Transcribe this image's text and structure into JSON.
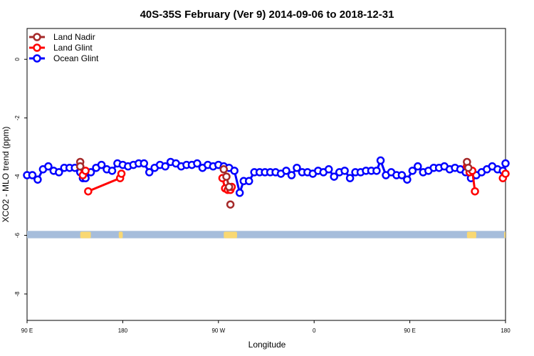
{
  "chart_data": {
    "type": "line",
    "title": "40S-35S February (Ver 9)   2014-09-06 to 2018-12-31",
    "xlabel": "Longitude",
    "ylabel": "XCO2 - MLO trend (ppm)",
    "xlim": [
      90,
      450
    ],
    "ylim": [
      -8.9,
      1.05
    ],
    "x_ticks": [
      {
        "value": 90,
        "label": "90 E"
      },
      {
        "value": 162,
        "label": "180"
      },
      {
        "value": 234,
        "label": "90 W"
      },
      {
        "value": 306,
        "label": "0"
      },
      {
        "value": 378,
        "label": "90 E"
      },
      {
        "value": 450,
        "label": "180"
      }
    ],
    "y_ticks": [
      {
        "value": 0,
        "label": "0"
      },
      {
        "value": -2,
        "label": "-2"
      },
      {
        "value": -4,
        "label": "-4"
      },
      {
        "value": -6,
        "label": "-6"
      },
      {
        "value": -8,
        "label": "-8"
      }
    ],
    "grid": false,
    "legend_position": "top-left",
    "background_band": {
      "y_top": -5.85,
      "y_bottom": -6.1,
      "ocean_color": "#a6bddb",
      "land_color": "#f9d873",
      "land_spans": [
        [
          130,
          138
        ],
        [
          159,
          162
        ],
        [
          238,
          248
        ],
        [
          421,
          428
        ],
        [
          449,
          450
        ]
      ]
    },
    "series": [
      {
        "name": "Land Nadir",
        "color": "#a52a2a",
        "segments": [
          [
            [
              130,
              -3.5
            ],
            [
              130.0,
              -3.65
            ]
          ],
          [
            [
              238,
              -3.75
            ],
            [
              240,
              -4.0
            ],
            [
              242,
              -4.35
            ]
          ],
          [
            [
              421,
              -3.5
            ],
            [
              422,
              -3.7
            ]
          ]
        ],
        "points": [
          [
            130,
            -3.5
          ],
          [
            130.0,
            -3.65
          ],
          [
            238,
            -3.75
          ],
          [
            240,
            -4.0
          ],
          [
            242,
            -4.35
          ],
          [
            243,
            -4.95
          ],
          [
            421,
            -3.5
          ],
          [
            422,
            -3.7
          ]
        ]
      },
      {
        "name": "Land Glint",
        "color": "#ff0000",
        "segments": [
          [
            [
              130,
              -3.65
            ],
            [
              132,
              -3.95
            ],
            [
              134,
              -3.8
            ]
          ],
          [
            [
              136,
              -4.5
            ],
            [
              160,
              -4.05
            ],
            [
              161,
              -3.9
            ]
          ],
          [
            [
              237,
              -4.05
            ],
            [
              239,
              -4.4
            ],
            [
              241,
              -4.45
            ],
            [
              243,
              -4.45
            ],
            [
              244,
              -4.35
            ]
          ],
          [
            [
              421,
              -3.65
            ],
            [
              423,
              -3.85
            ],
            [
              425,
              -3.8
            ],
            [
              427,
              -4.5
            ]
          ],
          [
            [
              448,
              -4.05
            ],
            [
              450,
              -3.9
            ]
          ]
        ],
        "points": [
          [
            130,
            -3.65
          ],
          [
            132,
            -3.95
          ],
          [
            134,
            -3.8
          ],
          [
            136,
            -4.5
          ],
          [
            160,
            -4.05
          ],
          [
            161,
            -3.9
          ],
          [
            237,
            -4.05
          ],
          [
            239,
            -4.4
          ],
          [
            241,
            -4.45
          ],
          [
            243,
            -4.45
          ],
          [
            244,
            -4.35
          ],
          [
            421,
            -3.65
          ],
          [
            423,
            -3.85
          ],
          [
            425,
            -3.8
          ],
          [
            427,
            -4.5
          ],
          [
            448,
            -4.05
          ],
          [
            450,
            -3.9
          ]
        ]
      },
      {
        "name": "Ocean Glint",
        "color": "#0000ff",
        "points": [
          [
            90,
            -3.95
          ],
          [
            94,
            -3.95
          ],
          [
            98,
            -4.1
          ],
          [
            102,
            -3.75
          ],
          [
            106,
            -3.65
          ],
          [
            110,
            -3.8
          ],
          [
            114,
            -3.85
          ],
          [
            118,
            -3.7
          ],
          [
            122,
            -3.7
          ],
          [
            126,
            -3.7
          ],
          [
            130,
            -3.85
          ],
          [
            132,
            -4.05
          ],
          [
            134,
            -4.05
          ],
          [
            138,
            -3.85
          ],
          [
            142,
            -3.7
          ],
          [
            146,
            -3.6
          ],
          [
            150,
            -3.75
          ],
          [
            154,
            -3.8
          ],
          [
            158,
            -3.55
          ],
          [
            162,
            -3.6
          ],
          [
            166,
            -3.65
          ],
          [
            170,
            -3.6
          ],
          [
            174,
            -3.55
          ],
          [
            178,
            -3.55
          ],
          [
            182,
            -3.85
          ],
          [
            186,
            -3.7
          ],
          [
            190,
            -3.6
          ],
          [
            194,
            -3.65
          ],
          [
            198,
            -3.5
          ],
          [
            202,
            -3.55
          ],
          [
            206,
            -3.65
          ],
          [
            210,
            -3.6
          ],
          [
            214,
            -3.6
          ],
          [
            218,
            -3.55
          ],
          [
            222,
            -3.7
          ],
          [
            226,
            -3.6
          ],
          [
            230,
            -3.65
          ],
          [
            234,
            -3.6
          ],
          [
            238,
            -3.65
          ],
          [
            242,
            -3.7
          ],
          [
            246,
            -3.8
          ],
          [
            250,
            -4.55
          ],
          [
            253,
            -4.15
          ],
          [
            257,
            -4.15
          ],
          [
            261,
            -3.85
          ],
          [
            265,
            -3.85
          ],
          [
            269,
            -3.85
          ],
          [
            273,
            -3.85
          ],
          [
            277,
            -3.85
          ],
          [
            281,
            -3.9
          ],
          [
            285,
            -3.8
          ],
          [
            289,
            -3.95
          ],
          [
            293,
            -3.7
          ],
          [
            297,
            -3.85
          ],
          [
            301,
            -3.85
          ],
          [
            305,
            -3.9
          ],
          [
            309,
            -3.8
          ],
          [
            313,
            -3.85
          ],
          [
            317,
            -3.75
          ],
          [
            321,
            -4.0
          ],
          [
            325,
            -3.85
          ],
          [
            329,
            -3.8
          ],
          [
            333,
            -4.05
          ],
          [
            337,
            -3.85
          ],
          [
            341,
            -3.85
          ],
          [
            345,
            -3.8
          ],
          [
            349,
            -3.8
          ],
          [
            353,
            -3.8
          ],
          [
            356,
            -3.45
          ],
          [
            360,
            -3.95
          ],
          [
            364,
            -3.85
          ],
          [
            368,
            -3.95
          ],
          [
            372,
            -3.95
          ],
          [
            376,
            -4.1
          ],
          [
            380,
            -3.8
          ],
          [
            384,
            -3.65
          ],
          [
            388,
            -3.85
          ],
          [
            392,
            -3.8
          ],
          [
            396,
            -3.7
          ],
          [
            400,
            -3.7
          ],
          [
            404,
            -3.65
          ],
          [
            408,
            -3.75
          ],
          [
            412,
            -3.7
          ],
          [
            416,
            -3.75
          ],
          [
            420,
            -3.85
          ],
          [
            424,
            -4.05
          ],
          [
            428,
            -3.95
          ],
          [
            432,
            -3.85
          ],
          [
            436,
            -3.75
          ],
          [
            440,
            -3.65
          ],
          [
            444,
            -3.75
          ],
          [
            448,
            -3.8
          ],
          [
            450,
            -3.55
          ]
        ]
      }
    ]
  }
}
